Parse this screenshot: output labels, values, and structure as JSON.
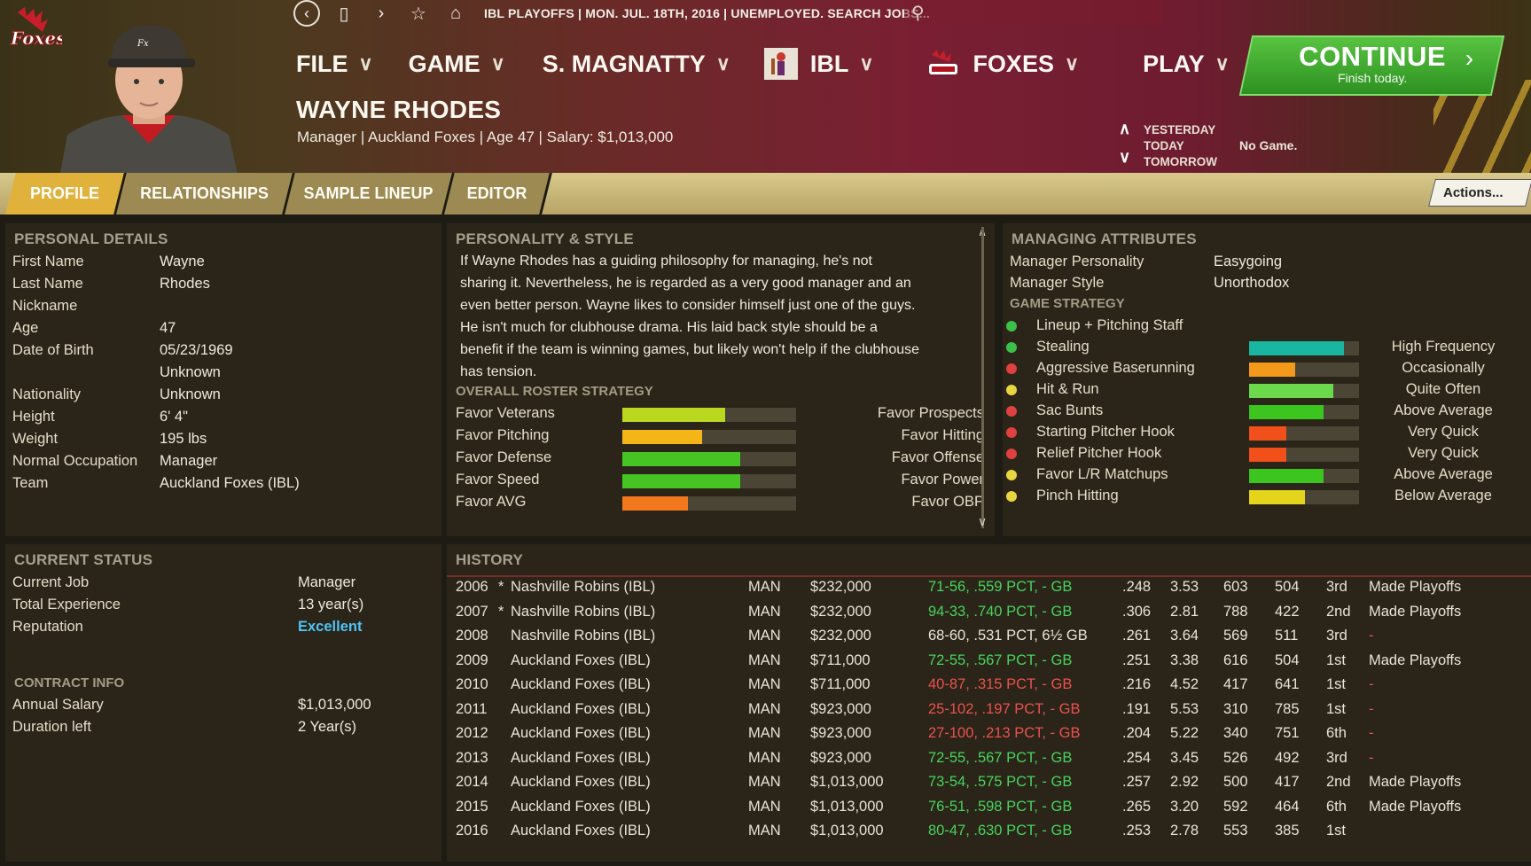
{
  "header": {
    "breadcrumb": "IBL PLAYOFFS  |  MON. JUL. 18TH, 2016  |  UNEMPLOYED. SEARCH JOBS...",
    "menu": [
      {
        "label": "FILE"
      },
      {
        "label": "GAME"
      },
      {
        "label": "S. MAGNATTY"
      },
      {
        "label": "IBL"
      },
      {
        "label": "FOXES"
      },
      {
        "label": "PLAY"
      }
    ],
    "continue_label": "CONTINUE",
    "continue_sub": "Finish today.",
    "player_name": "WAYNE RHODES",
    "player_sub": "Manager | Auckland Foxes  |  Age 47  |  Salary: $1,013,000",
    "schedule": [
      "YESTERDAY",
      "TODAY",
      "TOMORROW"
    ],
    "no_game": "No Game.",
    "team_logo_text": "Foxes"
  },
  "tabs": [
    "PROFILE",
    "RELATIONSHIPS",
    "SAMPLE LINEUP",
    "EDITOR"
  ],
  "actions_label": "Actions...",
  "personal": {
    "title": "PERSONAL DETAILS",
    "rows": [
      {
        "label": "First Name",
        "value": "Wayne"
      },
      {
        "label": "Last Name",
        "value": "Rhodes"
      },
      {
        "label": "Nickname",
        "value": ""
      },
      {
        "label": "Age",
        "value": "47"
      },
      {
        "label": "Date of Birth",
        "value": "05/23/1969"
      },
      {
        "label": "",
        "value": "Unknown"
      },
      {
        "label": "Nationality",
        "value": "Unknown"
      },
      {
        "label": "Height",
        "value": "6' 4\""
      },
      {
        "label": "Weight",
        "value": "195 lbs"
      },
      {
        "label": "Normal Occupation",
        "value": "Manager"
      },
      {
        "label": "Team",
        "value": "Auckland Foxes (IBL)"
      }
    ]
  },
  "status": {
    "title": "CURRENT STATUS",
    "rows": [
      {
        "label": "Current Job",
        "value": "Manager"
      },
      {
        "label": "Total Experience",
        "value": "13 year(s)"
      },
      {
        "label": "Reputation",
        "value": "Excellent"
      }
    ],
    "contract_title": "CONTRACT INFO",
    "contract": [
      {
        "label": "Annual Salary",
        "value": "$1,013,000"
      },
      {
        "label": "Duration left",
        "value": "2 Year(s)"
      }
    ]
  },
  "personality": {
    "title": "PERSONALITY & STYLE",
    "text": "If Wayne Rhodes has a guiding philosophy for managing, he's not sharing it. Nevertheless, he is regarded as a very good manager and an even better person.  Wayne likes to consider himself just one of the guys.  He isn't much for clubhouse drama. His laid back style should be a benefit if the team is winning games, but likely won't help if the clubhouse has tension.",
    "roster_title": "OVERALL ROSTER STRATEGY",
    "roster": [
      {
        "left": "Favor Veterans",
        "right": "Favor Prospects",
        "level": 0.59,
        "color": "#b9d81f"
      },
      {
        "left": "Favor Pitching",
        "right": "Favor Hitting",
        "level": 0.46,
        "color": "#f5b418"
      },
      {
        "left": "Favor Defense",
        "right": "Favor Offense",
        "level": 0.68,
        "color": "#45c424"
      },
      {
        "left": "Favor Speed",
        "right": "Favor Power",
        "level": 0.68,
        "color": "#45c424"
      },
      {
        "left": "Favor AVG",
        "right": "Favor OBP",
        "level": 0.38,
        "color": "#f3771c"
      }
    ]
  },
  "managing": {
    "title": "MANAGING ATTRIBUTES",
    "personality_label": "Manager Personality",
    "personality_value": "Easygoing",
    "style_label": "Manager Style",
    "style_value": "Unorthodox",
    "strategy_title": "GAME STRATEGY",
    "strategies": [
      {
        "label": "Lineup + Pitching Staff",
        "dot": "#3cc04a",
        "level": null,
        "color": "",
        "value": ""
      },
      {
        "label": "Stealing",
        "dot": "#3cc04a",
        "level": 0.86,
        "color": "#19b6a1",
        "value": "High Frequency"
      },
      {
        "label": "Aggressive Baserunning",
        "dot": "#e04040",
        "level": 0.42,
        "color": "#f39a1b",
        "value": "Occasionally"
      },
      {
        "label": "Hit & Run",
        "dot": "#e8d640",
        "level": 0.77,
        "color": "#6cd94d",
        "value": "Quite Often"
      },
      {
        "label": "Sac Bunts",
        "dot": "#e04040",
        "level": 0.68,
        "color": "#3cc41f",
        "value": "Above Average"
      },
      {
        "label": "Starting Pitcher Hook",
        "dot": "#e04040",
        "level": 0.34,
        "color": "#f2501a",
        "value": "Very Quick"
      },
      {
        "label": "Relief Pitcher Hook",
        "dot": "#e04040",
        "level": 0.34,
        "color": "#f2501a",
        "value": "Very Quick"
      },
      {
        "label": "Favor L/R Matchups",
        "dot": "#e8d640",
        "level": 0.68,
        "color": "#3cc41f",
        "value": "Above Average"
      },
      {
        "label": "Pinch Hitting",
        "dot": "#e8d640",
        "level": 0.51,
        "color": "#e4d41b",
        "value": "Below Average"
      }
    ]
  },
  "history": {
    "title": "HISTORY",
    "rows": [
      [
        "2006",
        "*",
        "Nashville Robins (IBL)",
        "MAN",
        "$232,000",
        "71-56, .559 PCT, - GB",
        ".248",
        "3.53",
        "603",
        "504",
        "3rd",
        "Made Playoffs",
        "green"
      ],
      [
        "2007",
        "*",
        "Nashville Robins (IBL)",
        "MAN",
        "$232,000",
        "94-33, .740 PCT, - GB",
        ".306",
        "2.81",
        "788",
        "422",
        "2nd",
        "Made Playoffs",
        "green"
      ],
      [
        "2008",
        "",
        "Nashville Robins (IBL)",
        "MAN",
        "$232,000",
        "68-60, .531 PCT, 6½ GB",
        ".261",
        "3.64",
        "569",
        "511",
        "3rd",
        "-",
        "white"
      ],
      [
        "2009",
        "",
        "Auckland Foxes (IBL)",
        "MAN",
        "$711,000",
        "72-55, .567 PCT, - GB",
        ".251",
        "3.38",
        "616",
        "504",
        "1st",
        "Made Playoffs",
        "green"
      ],
      [
        "2010",
        "",
        "Auckland Foxes (IBL)",
        "MAN",
        "$711,000",
        "40-87, .315 PCT, - GB",
        ".216",
        "4.52",
        "417",
        "641",
        "1st",
        "-",
        "red"
      ],
      [
        "2011",
        "",
        "Auckland Foxes (IBL)",
        "MAN",
        "$923,000",
        "25-102, .197 PCT, - GB",
        ".191",
        "5.53",
        "310",
        "785",
        "1st",
        "-",
        "red"
      ],
      [
        "2012",
        "",
        "Auckland Foxes (IBL)",
        "MAN",
        "$923,000",
        "27-100, .213 PCT, - GB",
        ".204",
        "5.22",
        "340",
        "751",
        "6th",
        "-",
        "red"
      ],
      [
        "2013",
        "",
        "Auckland Foxes (IBL)",
        "MAN",
        "$923,000",
        "72-55, .567 PCT, - GB",
        ".254",
        "3.45",
        "526",
        "492",
        "3rd",
        "-",
        "green"
      ],
      [
        "2014",
        "",
        "Auckland Foxes (IBL)",
        "MAN",
        "$1,013,000",
        "73-54, .575 PCT, - GB",
        ".257",
        "2.92",
        "500",
        "417",
        "2nd",
        "Made Playoffs",
        "green"
      ],
      [
        "2015",
        "",
        "Auckland Foxes (IBL)",
        "MAN",
        "$1,013,000",
        "76-51, .598 PCT, - GB",
        ".265",
        "3.20",
        "592",
        "464",
        "6th",
        "Made Playoffs",
        "green"
      ],
      [
        "2016",
        "",
        "Auckland Foxes (IBL)",
        "MAN",
        "$1,013,000",
        "80-47, .630 PCT, - GB",
        ".253",
        "2.78",
        "553",
        "385",
        "1st",
        "",
        "green"
      ]
    ]
  }
}
